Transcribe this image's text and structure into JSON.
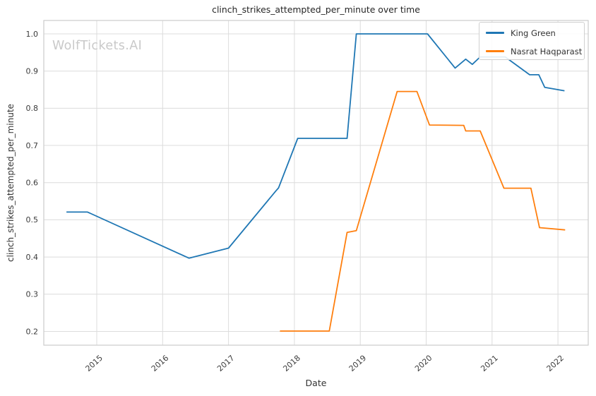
{
  "watermark": "WolfTickets.AI",
  "chart_data": {
    "type": "line",
    "title": "clinch_strikes_attempted_per_minute over time",
    "xlabel": "Date",
    "ylabel": "clinch_strikes_attempted_per_minute",
    "x_ticks": [
      "2015",
      "2016",
      "2017",
      "2018",
      "2019",
      "2020",
      "2021",
      "2022"
    ],
    "y_ticks": [
      "0.2",
      "0.3",
      "0.4",
      "0.5",
      "0.6",
      "0.7",
      "0.8",
      "0.9",
      "1.0"
    ],
    "xlim": [
      2014.196,
      2022.46
    ],
    "ylim": [
      0.163,
      1.036
    ],
    "grid": true,
    "grid_color": "#dcdcdc",
    "spine_color": "#cccccc",
    "tick_label_color": "#3b3b3b",
    "legend_position": "top-right",
    "series": [
      {
        "name": "King Green",
        "color": "#1f77b4",
        "points": [
          [
            2014.54,
            0.521
          ],
          [
            2014.86,
            0.521
          ],
          [
            2016.4,
            0.397
          ],
          [
            2017.0,
            0.424
          ],
          [
            2017.72,
            0.578
          ],
          [
            2017.76,
            0.586
          ],
          [
            2018.05,
            0.719
          ],
          [
            2018.8,
            0.719
          ],
          [
            2018.94,
            1.0
          ],
          [
            2020.02,
            1.0
          ],
          [
            2020.44,
            0.908
          ],
          [
            2020.6,
            0.932
          ],
          [
            2020.7,
            0.918
          ],
          [
            2020.82,
            0.938
          ],
          [
            2021.2,
            0.938
          ],
          [
            2021.57,
            0.89
          ],
          [
            2021.71,
            0.89
          ],
          [
            2021.8,
            0.856
          ],
          [
            2022.1,
            0.847
          ]
        ]
      },
      {
        "name": "Nasrat Haqparast",
        "color": "#ff7f0e",
        "points": [
          [
            2017.78,
            0.201
          ],
          [
            2018.53,
            0.201
          ],
          [
            2018.8,
            0.466
          ],
          [
            2018.94,
            0.471
          ],
          [
            2019.56,
            0.845
          ],
          [
            2019.86,
            0.845
          ],
          [
            2020.05,
            0.755
          ],
          [
            2020.57,
            0.754
          ],
          [
            2020.6,
            0.739
          ],
          [
            2020.82,
            0.739
          ],
          [
            2021.18,
            0.585
          ],
          [
            2021.59,
            0.585
          ],
          [
            2021.72,
            0.479
          ],
          [
            2022.11,
            0.473
          ]
        ]
      }
    ]
  }
}
